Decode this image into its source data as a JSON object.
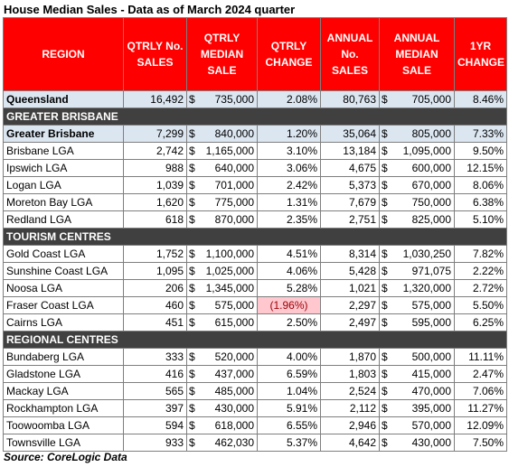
{
  "title": "House Median Sales - Data as of March 2024 quarter",
  "headers": {
    "region": "REGION",
    "qtrly_no": "QTRLY No. SALES",
    "qtrly_median": "QTRLY MEDIAN SALE",
    "qtrly_change": "QTRLY CHANGE",
    "annual_no": "ANNUAL No. SALES",
    "annual_median": "ANNUAL MEDIAN SALE",
    "yr_change": "1YR CHANGE"
  },
  "currency_symbol": "$",
  "rows": [
    {
      "type": "total",
      "region": "Queensland",
      "qtrly_no": "16,492",
      "qtrly_median": "735,000",
      "qtrly_change": "2.08%",
      "annual_no": "80,763",
      "annual_median": "705,000",
      "yr_change": "8.46%"
    },
    {
      "type": "section",
      "region": "GREATER BRISBANE"
    },
    {
      "type": "sub",
      "region": "Greater Brisbane",
      "qtrly_no": "7,299",
      "qtrly_median": "840,000",
      "qtrly_change": "1.20%",
      "annual_no": "35,064",
      "annual_median": "805,000",
      "yr_change": "7.33%"
    },
    {
      "type": "data",
      "region": "Brisbane LGA",
      "qtrly_no": "2,742",
      "qtrly_median": "1,165,000",
      "qtrly_change": "3.10%",
      "annual_no": "13,184",
      "annual_median": "1,095,000",
      "yr_change": "9.50%"
    },
    {
      "type": "data",
      "region": "Ipswich LGA",
      "qtrly_no": "988",
      "qtrly_median": "640,000",
      "qtrly_change": "3.06%",
      "annual_no": "4,675",
      "annual_median": "600,000",
      "yr_change": "12.15%"
    },
    {
      "type": "data",
      "region": "Logan LGA",
      "qtrly_no": "1,039",
      "qtrly_median": "701,000",
      "qtrly_change": "2.42%",
      "annual_no": "5,373",
      "annual_median": "670,000",
      "yr_change": "8.06%"
    },
    {
      "type": "data",
      "region": "Moreton Bay LGA",
      "qtrly_no": "1,620",
      "qtrly_median": "775,000",
      "qtrly_change": "1.31%",
      "annual_no": "7,679",
      "annual_median": "750,000",
      "yr_change": "6.38%"
    },
    {
      "type": "data",
      "region": "Redland LGA",
      "qtrly_no": "618",
      "qtrly_median": "870,000",
      "qtrly_change": "2.35%",
      "annual_no": "2,751",
      "annual_median": "825,000",
      "yr_change": "5.10%"
    },
    {
      "type": "section",
      "region": "TOURISM CENTRES"
    },
    {
      "type": "data",
      "region": "Gold Coast LGA",
      "qtrly_no": "1,752",
      "qtrly_median": "1,100,000",
      "qtrly_change": "4.51%",
      "annual_no": "8,314",
      "annual_median": "1,030,250",
      "yr_change": "7.82%"
    },
    {
      "type": "data",
      "region": "Sunshine Coast LGA",
      "qtrly_no": "1,095",
      "qtrly_median": "1,025,000",
      "qtrly_change": "4.06%",
      "annual_no": "5,428",
      "annual_median": "971,075",
      "yr_change": "2.22%"
    },
    {
      "type": "data",
      "region": "Noosa LGA",
      "qtrly_no": "206",
      "qtrly_median": "1,345,000",
      "qtrly_change": "5.28%",
      "annual_no": "1,021",
      "annual_median": "1,320,000",
      "yr_change": "2.72%"
    },
    {
      "type": "data",
      "region": "Fraser Coast LGA",
      "qtrly_no": "460",
      "qtrly_median": "575,000",
      "qtrly_change": "(1.96%)",
      "qtrly_change_negative": true,
      "annual_no": "2,297",
      "annual_median": "575,000",
      "yr_change": "5.50%"
    },
    {
      "type": "data",
      "region": "Cairns LGA",
      "qtrly_no": "451",
      "qtrly_median": "615,000",
      "qtrly_change": "2.50%",
      "annual_no": "2,497",
      "annual_median": "595,000",
      "yr_change": "6.25%"
    },
    {
      "type": "section",
      "region": "REGIONAL CENTRES"
    },
    {
      "type": "data",
      "region": "Bundaberg LGA",
      "qtrly_no": "333",
      "qtrly_median": "520,000",
      "qtrly_change": "4.00%",
      "annual_no": "1,870",
      "annual_median": "500,000",
      "yr_change": "11.11%"
    },
    {
      "type": "data",
      "region": "Gladstone LGA",
      "qtrly_no": "416",
      "qtrly_median": "437,000",
      "qtrly_change": "6.59%",
      "annual_no": "1,803",
      "annual_median": "415,000",
      "yr_change": "2.47%"
    },
    {
      "type": "data",
      "region": "Mackay LGA",
      "qtrly_no": "565",
      "qtrly_median": "485,000",
      "qtrly_change": "1.04%",
      "annual_no": "2,524",
      "annual_median": "470,000",
      "yr_change": "7.06%"
    },
    {
      "type": "data",
      "region": "Rockhampton LGA",
      "qtrly_no": "397",
      "qtrly_median": "430,000",
      "qtrly_change": "5.91%",
      "annual_no": "2,112",
      "annual_median": "395,000",
      "yr_change": "11.27%"
    },
    {
      "type": "data",
      "region": "Toowoomba LGA",
      "qtrly_no": "594",
      "qtrly_median": "618,000",
      "qtrly_change": "6.55%",
      "annual_no": "2,946",
      "annual_median": "570,000",
      "yr_change": "12.09%"
    },
    {
      "type": "data",
      "region": "Townsville LGA",
      "qtrly_no": "933",
      "qtrly_median": "462,030",
      "qtrly_change": "5.37%",
      "annual_no": "4,642",
      "annual_median": "430,000",
      "yr_change": "7.50%"
    }
  ],
  "source": "Source: CoreLogic Data",
  "colors": {
    "header_bg": "#ff0000",
    "header_text": "#ffffff",
    "section_bg": "#404040",
    "highlight_row_bg": "#dce6f1",
    "negative_bg": "#ffc7ce",
    "negative_text": "#9c0006"
  }
}
